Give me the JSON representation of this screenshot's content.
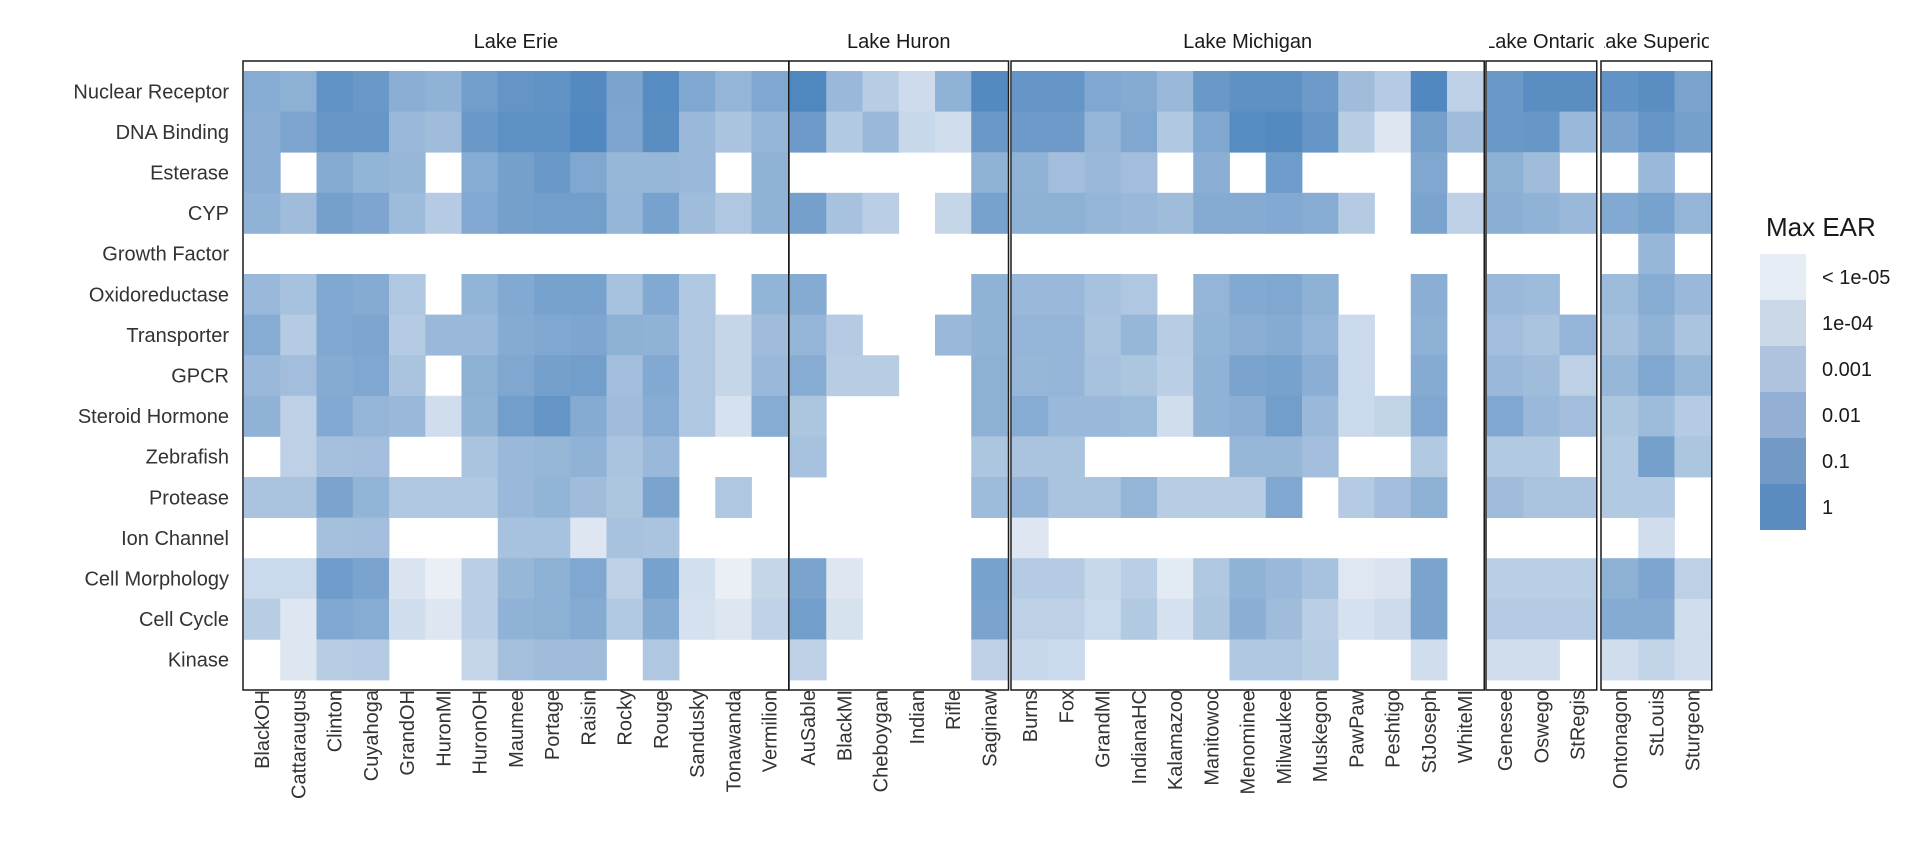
{
  "chart_data": {
    "type": "heatmap",
    "title": "",
    "xlabel": "",
    "ylabel": "",
    "categories": [
      "Nuclear Receptor",
      "DNA Binding",
      "Esterase",
      "CYP",
      "Growth Factor",
      "Oxidoreductase",
      "Transporter",
      "GPCR",
      "Steroid Hormone",
      "Zebrafish",
      "Protease",
      "Ion Channel",
      "Cell Morphology",
      "Cell Cycle",
      "Kinase"
    ],
    "value_scale": "log10 Max EAR level: -6 = below 1e-06 (very faint), -5 = < 1e-05, -4 = 1e-04, -3 = 0.001, -2 = 0.01, -1 = 0.1, 0 = 1; null = no data",
    "legend": {
      "title": "Max EAR",
      "position": "right",
      "labels": [
        "< 1e-05",
        "1e-04",
        "0.001",
        "0.01",
        "0.1",
        "1"
      ]
    },
    "facets": [
      {
        "name": "Lake Erie",
        "sites": [
          "BlackOH",
          "Cattaraugus",
          "Clinton",
          "Cuyahoga",
          "GrandOH",
          "HuronMI",
          "HuronOH",
          "Maumee",
          "Portage",
          "Raisin",
          "Rocky",
          "Rouge",
          "Sandusky",
          "Tonawanda",
          "Vermilion"
        ],
        "values": [
          [
            -2.3,
            -2.5,
            -0.9,
            -1.2,
            -2.4,
            -2.6,
            -1.5,
            -1.0,
            -0.9,
            -0.4,
            -1.8,
            -0.5,
            -2.0,
            -2.8,
            -2.0
          ],
          [
            -2.4,
            -1.9,
            -1.1,
            -1.1,
            -3.0,
            -3.2,
            -1.2,
            -0.7,
            -0.7,
            -0.3,
            -1.9,
            -0.6,
            -3.0,
            -3.6,
            -2.8
          ],
          [
            -2.4,
            null,
            -2.2,
            -2.7,
            -2.9,
            null,
            -2.3,
            -1.6,
            -1.2,
            -2.0,
            -2.9,
            -2.9,
            -3.0,
            null,
            -2.6
          ],
          [
            -2.6,
            -3.2,
            -1.6,
            -1.9,
            -3.1,
            -4.0,
            -2.1,
            -1.6,
            -1.5,
            -1.5,
            -2.8,
            -1.7,
            -3.2,
            -3.8,
            -2.6
          ],
          [
            null,
            null,
            null,
            null,
            null,
            null,
            null,
            null,
            null,
            null,
            null,
            null,
            null,
            null,
            null
          ],
          [
            -3.0,
            -3.5,
            -2.0,
            -2.2,
            -3.8,
            null,
            -2.7,
            -2.1,
            -1.7,
            -1.7,
            -3.5,
            -2.1,
            -3.8,
            null,
            -2.7
          ],
          [
            -2.3,
            -4.0,
            -2.0,
            -1.9,
            -4.0,
            -3.0,
            -3.0,
            -2.2,
            -2.0,
            -1.9,
            -2.5,
            -2.6,
            -3.8,
            -4.6,
            -3.2
          ],
          [
            -3.0,
            -3.3,
            -2.2,
            -2.0,
            -3.6,
            null,
            -2.5,
            -2.0,
            -1.6,
            -1.5,
            -3.3,
            -2.1,
            -3.8,
            -4.6,
            -3.0
          ],
          [
            -2.6,
            -4.3,
            -2.1,
            -2.8,
            -3.0,
            -5.0,
            -2.6,
            -1.5,
            -1.0,
            -2.2,
            -3.2,
            -2.3,
            -3.8,
            -5.2,
            -2.3
          ],
          [
            null,
            -4.3,
            -3.4,
            -3.3,
            null,
            null,
            -3.6,
            -3.0,
            -2.9,
            -2.6,
            -3.6,
            -3.0,
            null,
            null,
            null
          ],
          [
            -3.6,
            -3.6,
            -1.8,
            -2.7,
            -3.8,
            -3.8,
            -3.8,
            -3.0,
            -2.7,
            -3.2,
            -3.7,
            -1.8,
            null,
            -3.8,
            null
          ],
          [
            null,
            null,
            -3.4,
            -3.3,
            null,
            null,
            null,
            -3.5,
            -3.5,
            -5.5,
            -3.5,
            -3.6,
            null,
            null,
            null
          ],
          [
            -4.8,
            -4.8,
            -1.4,
            -1.8,
            -5.4,
            -6.0,
            -4.2,
            -2.9,
            -2.5,
            -2.0,
            -4.3,
            -1.7,
            -5.1,
            -6.0,
            -4.6
          ],
          [
            -4.1,
            -5.5,
            -2.0,
            -2.3,
            -5.0,
            -5.5,
            -4.2,
            -2.6,
            -2.5,
            -2.2,
            -3.9,
            -2.2,
            -5.2,
            -5.5,
            -4.4
          ],
          [
            null,
            -5.5,
            -4.1,
            -4.0,
            null,
            null,
            -4.6,
            -3.4,
            -3.2,
            -3.2,
            null,
            -3.8,
            null,
            null,
            null
          ]
        ]
      },
      {
        "name": "Lake Huron",
        "sites": [
          "AuSable",
          "BlackMI",
          "Cheboygan",
          "Indian",
          "Rifle",
          "Saginaw"
        ],
        "values": [
          [
            -0.2,
            -3.0,
            -4.1,
            -4.9,
            -2.6,
            -0.4
          ],
          [
            -1.3,
            -3.9,
            -3.0,
            -4.7,
            -5.0,
            -1.2
          ],
          [
            null,
            null,
            null,
            null,
            null,
            -2.6
          ],
          [
            -1.6,
            -3.5,
            -4.2,
            null,
            -4.6,
            -1.7
          ],
          [
            null,
            null,
            null,
            null,
            null,
            null
          ],
          [
            -2.2,
            null,
            null,
            null,
            null,
            -2.6
          ],
          [
            -2.8,
            -4.0,
            null,
            null,
            -3.0,
            -2.6
          ],
          [
            -2.3,
            -4.1,
            -4.1,
            null,
            null,
            -2.5
          ],
          [
            -3.7,
            null,
            null,
            null,
            null,
            -2.5
          ],
          [
            -3.5,
            null,
            null,
            null,
            null,
            -3.7
          ],
          [
            null,
            null,
            null,
            null,
            null,
            -3.1
          ],
          [
            null,
            null,
            null,
            null,
            null,
            null
          ],
          [
            -1.8,
            -5.5,
            null,
            null,
            null,
            -1.7
          ],
          [
            -1.5,
            -5.3,
            null,
            null,
            null,
            -1.8
          ],
          [
            -4.3,
            null,
            null,
            null,
            null,
            -4.3
          ]
        ]
      },
      {
        "name": "Lake Michigan",
        "sites": [
          "Burns",
          "Fox",
          "GrandMI",
          "IndianaHC",
          "Kalamazoo",
          "Manitowoc",
          "Menominee",
          "Milwaukee",
          "Muskegon",
          "PawPaw",
          "Peshtigo",
          "StJoseph",
          "WhiteMI"
        ],
        "values": [
          [
            -1.0,
            -1.0,
            -2.0,
            -2.2,
            -3.0,
            -1.2,
            -0.8,
            -0.8,
            -1.3,
            -3.2,
            -4.0,
            -0.3,
            -4.3
          ],
          [
            -1.3,
            -1.3,
            -2.8,
            -2.0,
            -3.8,
            -2.0,
            -0.5,
            -0.4,
            -1.0,
            -4.1,
            -5.5,
            -1.6,
            -3.2
          ],
          [
            -2.6,
            -3.3,
            -3.0,
            -3.3,
            null,
            -2.4,
            null,
            -1.4,
            null,
            null,
            null,
            -2.0,
            null
          ],
          [
            -2.5,
            -2.5,
            -2.8,
            -3.0,
            -3.2,
            -2.2,
            -2.2,
            -2.1,
            -2.3,
            -4.0,
            null,
            -1.8,
            -4.3
          ],
          [
            null,
            null,
            null,
            null,
            null,
            null,
            null,
            null,
            null,
            null,
            null,
            null,
            null
          ],
          [
            -3.0,
            -3.0,
            -3.5,
            -3.8,
            null,
            -2.8,
            -2.1,
            -2.0,
            -2.5,
            null,
            null,
            -2.4,
            null
          ],
          [
            -2.8,
            -2.8,
            -3.6,
            -2.9,
            -4.1,
            -2.7,
            -2.4,
            -2.2,
            -2.8,
            -4.8,
            null,
            -2.5,
            null
          ],
          [
            -2.9,
            -2.8,
            -3.5,
            -3.7,
            -4.2,
            -2.6,
            -1.8,
            -1.7,
            -2.4,
            -4.8,
            null,
            -2.2,
            null
          ],
          [
            -2.3,
            -3.0,
            -3.0,
            -3.1,
            -5.0,
            -2.6,
            -2.4,
            -1.5,
            -3.0,
            -4.8,
            -4.5,
            -2.0,
            null
          ],
          [
            -3.6,
            -3.6,
            null,
            null,
            null,
            null,
            -2.9,
            -2.9,
            -3.3,
            null,
            null,
            -3.9,
            null
          ],
          [
            -2.8,
            -3.6,
            -3.6,
            -2.8,
            -4.1,
            -4.1,
            -4.1,
            -2.0,
            null,
            -4.0,
            -3.3,
            -2.5,
            null
          ],
          [
            -5.5,
            null,
            null,
            null,
            null,
            null,
            null,
            null,
            null,
            null,
            null,
            null,
            null
          ],
          [
            -4.0,
            -4.0,
            -4.7,
            -4.2,
            -5.7,
            -3.8,
            -2.6,
            -3.0,
            -3.5,
            -5.6,
            -5.4,
            -1.8,
            null
          ],
          [
            -4.3,
            -4.3,
            -4.8,
            -3.9,
            -5.2,
            -3.7,
            -2.4,
            -3.2,
            -4.2,
            -5.2,
            -4.9,
            -1.8,
            null
          ],
          [
            -4.7,
            -4.8,
            null,
            null,
            null,
            null,
            -3.8,
            -3.8,
            -4.1,
            null,
            null,
            -5.0,
            null
          ]
        ]
      },
      {
        "name": "Lake Ontario",
        "sites": [
          "Genesee",
          "Oswego",
          "StRegis"
        ],
        "values": [
          [
            -1.2,
            -0.6,
            -0.6
          ],
          [
            -1.2,
            -1.1,
            -3.0
          ],
          [
            -2.5,
            -3.2,
            null
          ],
          [
            -2.4,
            -2.6,
            -3.0
          ],
          [
            null,
            null,
            null
          ],
          [
            -3.0,
            -3.1,
            null
          ],
          [
            -3.3,
            -3.6,
            -2.8
          ],
          [
            -3.0,
            -3.2,
            -4.3
          ],
          [
            -2.0,
            -3.0,
            -3.3
          ],
          [
            -3.9,
            -3.9,
            null
          ],
          [
            -3.2,
            -3.6,
            -3.6
          ],
          [
            null,
            null,
            null
          ],
          [
            -4.2,
            -4.2,
            -4.2
          ],
          [
            -4.0,
            -4.0,
            -4.0
          ],
          [
            -5.0,
            -5.0,
            null
          ]
        ]
      },
      {
        "name": "Lake Superior",
        "sites": [
          "Ontonagon",
          "StLouis",
          "Sturgeon"
        ],
        "values": [
          [
            -0.9,
            -0.6,
            -1.8
          ],
          [
            -1.8,
            -1.0,
            -1.6
          ],
          [
            null,
            -3.0,
            null
          ],
          [
            -2.1,
            -1.7,
            -2.8
          ],
          [
            null,
            -2.9,
            null
          ],
          [
            -3.1,
            -2.3,
            -3.0
          ],
          [
            -3.4,
            -2.6,
            -3.6
          ],
          [
            -2.9,
            -2.0,
            -2.9
          ],
          [
            -3.7,
            -3.1,
            -4.0
          ],
          [
            -3.9,
            -1.6,
            -3.7
          ],
          [
            -3.9,
            -3.9,
            null
          ],
          [
            null,
            -5.0,
            null
          ],
          [
            -2.5,
            -1.9,
            -4.3
          ],
          [
            -2.2,
            -2.2,
            -5.0
          ],
          [
            -5.0,
            -4.5,
            -5.0
          ]
        ]
      }
    ]
  },
  "colors": {
    "low": "#eaeff6",
    "high": "#4a83bd",
    "panel_border": "#1a1a1a",
    "legend": [
      "#e6ecf4",
      "#cbd8e8",
      "#afc3de",
      "#93afd3",
      "#7399c6",
      "#5a8cc0"
    ]
  }
}
